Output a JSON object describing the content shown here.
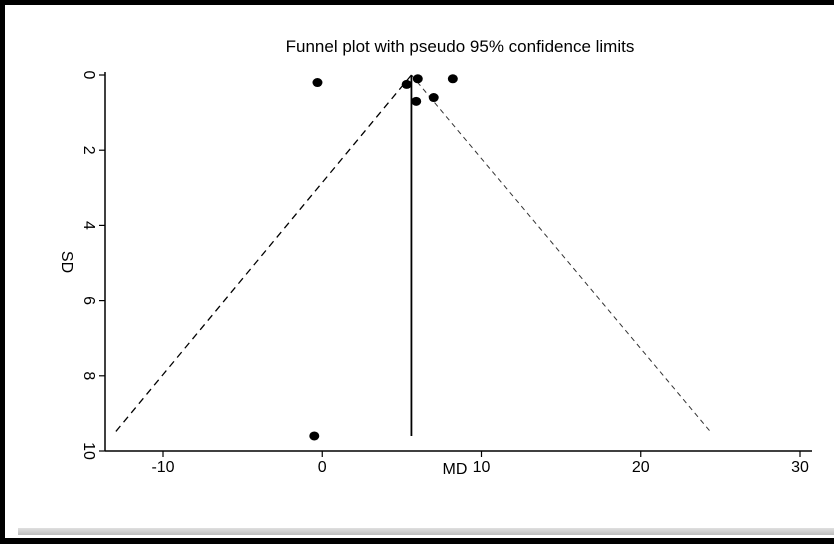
{
  "chart_data": {
    "type": "scatter",
    "title": "Funnel plot with pseudo 95% confidence limits",
    "xlabel": "MD",
    "ylabel": "SD",
    "xlim": [
      -14,
      30
    ],
    "ylim": [
      0,
      10
    ],
    "y_reversed": true,
    "x_ticks": [
      "-10",
      "0",
      "10",
      "20",
      "30"
    ],
    "y_ticks": [
      "0",
      "2",
      "4",
      "6",
      "8",
      "10"
    ],
    "grid": false,
    "points": [
      {
        "x": -0.3,
        "y": 0.2
      },
      {
        "x": 5.3,
        "y": 0.25
      },
      {
        "x": 6.0,
        "y": 0.1
      },
      {
        "x": 8.2,
        "y": 0.1
      },
      {
        "x": 7.0,
        "y": 0.6
      },
      {
        "x": 5.9,
        "y": 0.7
      },
      {
        "x": -0.5,
        "y": 9.6
      }
    ],
    "pooled_estimate": 5.6,
    "pooled_line_ylim": [
      0,
      9.6
    ],
    "confidence_limits": {
      "apex": {
        "x": 5.6,
        "y": 0
      },
      "bottom": 9.5,
      "left_at_bottom": -13.0,
      "right_at_bottom": 24.4,
      "style": "dashed"
    }
  }
}
